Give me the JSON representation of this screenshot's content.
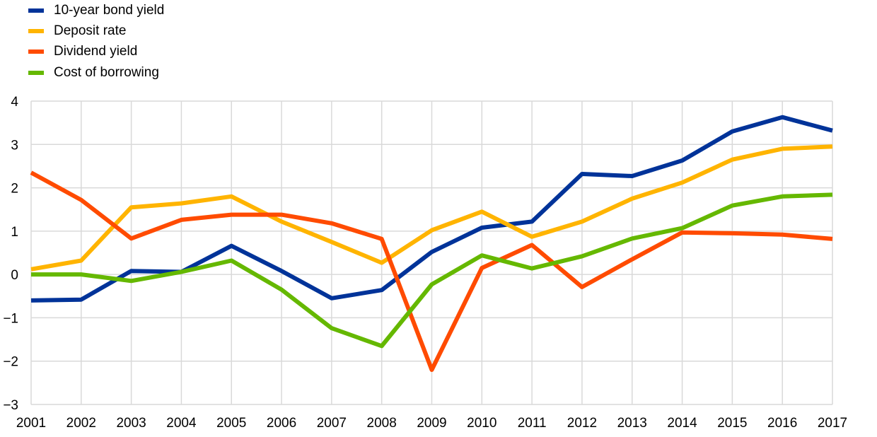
{
  "chart_data": {
    "type": "line",
    "title": "",
    "xlabel": "",
    "ylabel": "",
    "x": [
      "2001",
      "2002",
      "2003",
      "2004",
      "2005",
      "2006",
      "2007",
      "2008",
      "2009",
      "2010",
      "2011",
      "2012",
      "2013",
      "2014",
      "2015",
      "2016",
      "2017"
    ],
    "ylim": [
      -3,
      4
    ],
    "yticks": [
      4,
      3,
      2,
      1,
      0,
      -1,
      -2,
      -3
    ],
    "ytick_labels": [
      "4",
      "3",
      "2",
      "1",
      "0",
      "−1",
      "−2",
      "−3"
    ],
    "grid": "vertical and horizontal",
    "legend_position": "top-left",
    "series": [
      {
        "name": "10-year bond yield",
        "color": "#003399",
        "values": [
          -0.6,
          -0.58,
          0.08,
          0.06,
          0.66,
          0.08,
          -0.55,
          -0.36,
          0.52,
          1.08,
          1.22,
          2.32,
          2.27,
          2.63,
          3.3,
          3.63,
          3.32
        ]
      },
      {
        "name": "Deposit rate",
        "color": "#FFB400",
        "values": [
          0.12,
          0.32,
          1.55,
          1.64,
          1.8,
          1.22,
          0.75,
          0.27,
          1.02,
          1.45,
          0.87,
          1.22,
          1.75,
          2.12,
          2.65,
          2.9,
          2.95
        ]
      },
      {
        "name": "Dividend yield",
        "color": "#FF4B00",
        "values": [
          2.35,
          1.72,
          0.83,
          1.26,
          1.38,
          1.38,
          1.18,
          0.82,
          -2.2,
          0.15,
          0.68,
          -0.29,
          0.35,
          0.97,
          0.95,
          0.92,
          0.82
        ]
      },
      {
        "name": "Cost of borrowing",
        "color": "#65B800",
        "values": [
          0.0,
          0.0,
          -0.15,
          0.06,
          0.32,
          -0.35,
          -1.24,
          -1.65,
          -0.23,
          0.44,
          0.14,
          0.42,
          0.83,
          1.07,
          1.59,
          1.8,
          1.84
        ]
      }
    ]
  }
}
